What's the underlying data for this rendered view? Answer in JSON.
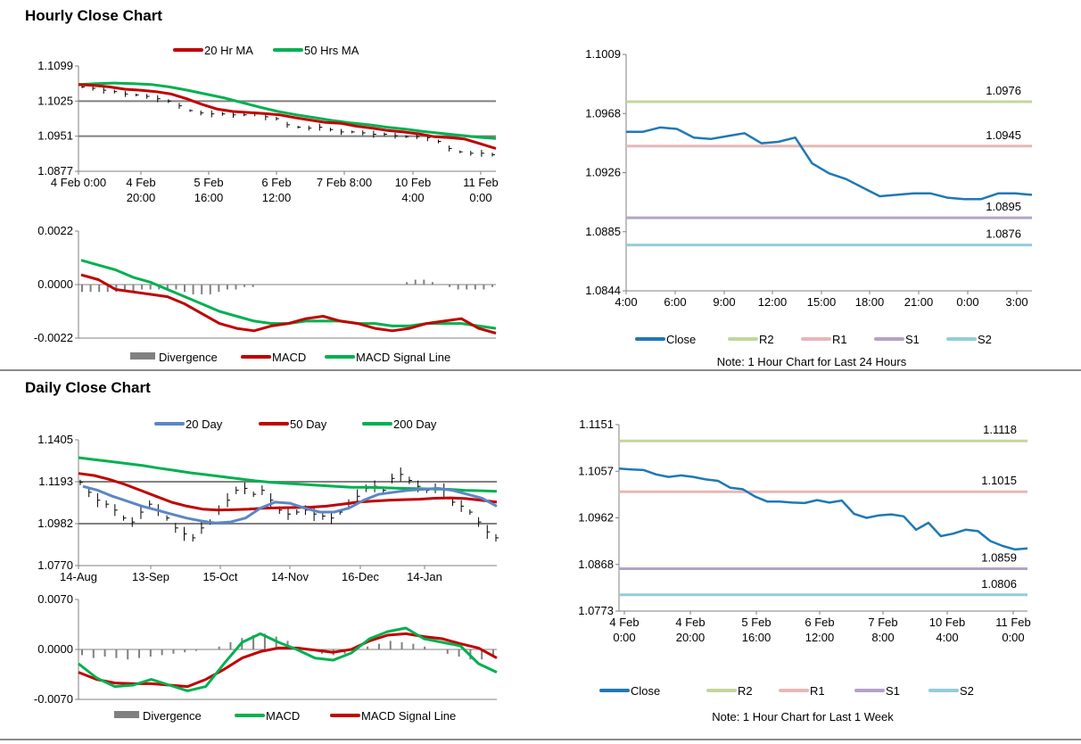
{
  "sections": {
    "hourly_title": "Hourly Close Chart",
    "daily_title": "Daily Close Chart"
  },
  "colors": {
    "ma20_hourly": "#c00000",
    "ma50_hourly": "#00b050",
    "day20": "#5b87c5",
    "day50": "#c00000",
    "day200": "#00b050",
    "macd_red": "#c00000",
    "macd_green": "#00b050",
    "divergence": "#808080",
    "close": "#1f78b4",
    "r2": "#c3d69b",
    "r1": "#e6b8b7",
    "s1": "#b3a2c7",
    "s2": "#92cddc",
    "grid": "#808080",
    "price_bar": "#000000"
  },
  "notes": {
    "hourly": "Note: 1 Hour Chart for Last 24 Hours",
    "daily": "Note: 1 Hour Chart for Last 1 Week"
  },
  "chart_data": [
    {
      "id": "hourly_price",
      "type": "line",
      "legend": [
        "20 Hr MA",
        "50 Hrs MA"
      ],
      "yticks": [
        "1.1099",
        "1.1025",
        "1.0951",
        "1.0877"
      ],
      "ylim": [
        1.0877,
        1.1099
      ],
      "xticks": [
        [
          "4 Feb 0:00"
        ],
        [
          "4 Feb",
          "20:00"
        ],
        [
          "5 Feb",
          "16:00"
        ],
        [
          "6 Feb",
          "12:00"
        ],
        [
          "7 Feb 8:00"
        ],
        [
          "10 Feb",
          "4:00"
        ],
        [
          "11 Feb",
          "0:00"
        ]
      ],
      "price_y": [
        1.1055,
        1.1052,
        1.1048,
        1.1045,
        1.104,
        1.1038,
        1.1035,
        1.103,
        1.1025,
        1.1015,
        1.1005,
        1.1,
        1.0998,
        1.0998,
        1.0996,
        1.0996,
        1.0998,
        1.0992,
        1.0988,
        1.0975,
        1.097,
        1.0968,
        1.097,
        1.0965,
        1.096,
        1.096,
        1.0958,
        1.0955,
        1.0955,
        1.0952,
        1.095,
        1.095,
        1.0948,
        1.094,
        1.0925,
        1.0918,
        1.0915,
        1.0915,
        1.0912
      ],
      "series": [
        {
          "name": "20 Hr MA",
          "values": [
            1.106,
            1.1058,
            1.1055,
            1.105,
            1.1048,
            1.1045,
            1.104,
            1.103,
            1.1018,
            1.1008,
            1.1003,
            1.1001,
            1.0999,
            1.0996,
            1.099,
            1.0985,
            1.098,
            1.0978,
            1.0972,
            1.0968,
            1.0963,
            1.096,
            1.0956,
            1.095,
            1.0948,
            1.0945,
            1.0935,
            1.0925
          ]
        },
        {
          "name": "50 Hrs MA",
          "values": [
            1.106,
            1.1062,
            1.1063,
            1.1062,
            1.106,
            1.1055,
            1.1048,
            1.104,
            1.1032,
            1.1022,
            1.1012,
            1.1003,
            1.0996,
            1.099,
            1.0984,
            1.0979,
            1.0975,
            1.097,
            1.0966,
            1.0961,
            1.0957,
            1.0953,
            1.0949,
            1.0946
          ]
        }
      ]
    },
    {
      "id": "hourly_macd",
      "type": "line",
      "legend": [
        "Divergence",
        "MACD",
        "MACD Signal Line"
      ],
      "yticks": [
        "0.0022",
        "0.0000",
        "-0.0022"
      ],
      "ylim": [
        -0.0022,
        0.0022
      ],
      "series": [
        {
          "name": "Divergence",
          "values": [
            -0.0003,
            -0.0003,
            -0.0003,
            -0.0003,
            -0.0003,
            -0.0003,
            -0.0003,
            -0.0002,
            -0.0002,
            -0.0002,
            -0.0002,
            -0.0002,
            -0.0003,
            -0.0004,
            -0.0004,
            -0.0004,
            -0.0003,
            -0.0002,
            -0.0002,
            -0.0001,
            -0.0001,
            0.0,
            0.0,
            0.0,
            0.0,
            0.0,
            0.0,
            0.0,
            0.0,
            0.0,
            0.0,
            0.0,
            0.0,
            0.0,
            0.0,
            0.0,
            0.0,
            0.0,
            0.0001,
            0.0002,
            0.0002,
            0.0001,
            0.0,
            -0.0001,
            -0.0002,
            -0.0002,
            -0.0002,
            -0.0002,
            -0.0001
          ]
        },
        {
          "name": "MACD",
          "values": [
            0.0004,
            0.0002,
            -0.0002,
            -0.0003,
            -0.0004,
            -0.0005,
            -0.0008,
            -0.0012,
            -0.0016,
            -0.0018,
            -0.0019,
            -0.0017,
            -0.0016,
            -0.0014,
            -0.0013,
            -0.0015,
            -0.0016,
            -0.0018,
            -0.0019,
            -0.0018,
            -0.0016,
            -0.0015,
            -0.0014,
            -0.0018,
            -0.002
          ]
        },
        {
          "name": "MACD Signal Line",
          "values": [
            0.001,
            0.0008,
            0.0006,
            0.0003,
            0.0001,
            -0.0002,
            -0.0005,
            -0.0008,
            -0.0011,
            -0.0013,
            -0.0015,
            -0.0016,
            -0.0016,
            -0.0015,
            -0.0015,
            -0.0015,
            -0.0016,
            -0.0016,
            -0.0017,
            -0.0017,
            -0.0016,
            -0.0016,
            -0.0016,
            -0.0017,
            -0.0018
          ]
        }
      ]
    },
    {
      "id": "hourly_levels",
      "type": "line",
      "legend": [
        "Close",
        "R2",
        "R1",
        "S1",
        "S2"
      ],
      "yticks": [
        "1.1009",
        "1.0968",
        "1.0926",
        "1.0885",
        "1.0844"
      ],
      "ylim": [
        1.0844,
        1.1009
      ],
      "xticks": [
        "4:00",
        "6:00",
        "9:00",
        "12:00",
        "15:00",
        "18:00",
        "21:00",
        "0:00",
        "3:00"
      ],
      "levels": [
        {
          "name": "R2",
          "value": 1.0976,
          "label": "1.0976"
        },
        {
          "name": "R1",
          "value": 1.0945,
          "label": "1.0945"
        },
        {
          "name": "S1",
          "value": 1.0895,
          "label": "1.0895"
        },
        {
          "name": "S2",
          "value": 1.0876,
          "label": "1.0876"
        }
      ],
      "series": [
        {
          "name": "Close",
          "values": [
            1.0955,
            1.0955,
            1.0958,
            1.0957,
            1.0951,
            1.095,
            1.0952,
            1.0954,
            1.0947,
            1.0948,
            1.0951,
            1.0933,
            1.0926,
            1.0922,
            1.0916,
            1.091,
            1.0911,
            1.0912,
            1.0912,
            1.0909,
            1.0908,
            1.0908,
            1.0912,
            1.0912,
            1.0911
          ]
        }
      ]
    },
    {
      "id": "daily_price",
      "type": "line",
      "legend": [
        "20 Day",
        "50 Day",
        "200 Day"
      ],
      "yticks": [
        "1.1405",
        "1.1193",
        "1.0982",
        "1.0770"
      ],
      "ylim": [
        1.077,
        1.1405
      ],
      "xticks": [
        "14-Aug",
        "13-Sep",
        "15-Oct",
        "14-Nov",
        "16-Dec",
        "14-Jan"
      ],
      "price_y": [
        1.119,
        1.114,
        1.11,
        1.108,
        1.105,
        1.101,
        1.099,
        1.104,
        1.108,
        1.105,
        1.101,
        1.096,
        1.093,
        1.091,
        1.096,
        1.099,
        1.105,
        1.11,
        1.115,
        1.116,
        1.113,
        1.115,
        1.11,
        1.105,
        1.103,
        1.104,
        1.105,
        1.103,
        1.102,
        1.101,
        1.104,
        1.108,
        1.112,
        1.116,
        1.117,
        1.115,
        1.121,
        1.123,
        1.12,
        1.117,
        1.115,
        1.116,
        1.115,
        1.109,
        1.107,
        1.104,
        1.099,
        1.094,
        1.091
      ],
      "series": [
        {
          "name": "20 Day",
          "values": [
            1.117,
            1.115,
            1.112,
            1.1095,
            1.107,
            1.105,
            1.103,
            1.101,
            1.0995,
            1.0985,
            1.099,
            1.101,
            1.106,
            1.109,
            1.1085,
            1.106,
            1.104,
            1.104,
            1.106,
            1.11,
            1.113,
            1.114,
            1.115,
            1.1155,
            1.116,
            1.115,
            1.113,
            1.111,
            1.107
          ]
        },
        {
          "name": "50 Day",
          "values": [
            1.1235,
            1.1225,
            1.1205,
            1.118,
            1.115,
            1.112,
            1.109,
            1.107,
            1.1055,
            1.105,
            1.1052,
            1.1055,
            1.106,
            1.1062,
            1.1063,
            1.1065,
            1.107,
            1.108,
            1.109,
            1.1095,
            1.11,
            1.1103,
            1.1105,
            1.111,
            1.1112,
            1.1108,
            1.11,
            1.109
          ]
        },
        {
          "name": "200 Day",
          "values": [
            1.1315,
            1.1305,
            1.1295,
            1.1285,
            1.1275,
            1.1262,
            1.125,
            1.1238,
            1.1228,
            1.1218,
            1.1208,
            1.1198,
            1.119,
            1.1185,
            1.118,
            1.1175,
            1.117,
            1.1165,
            1.1165,
            1.1163,
            1.116,
            1.1158,
            1.1157,
            1.1155,
            1.115,
            1.1148,
            1.1145
          ]
        }
      ]
    },
    {
      "id": "daily_macd",
      "type": "line",
      "legend": [
        "Divergence",
        "MACD",
        "MACD Signal Line"
      ],
      "yticks": [
        "0.0070",
        "0.0000",
        "-0.0070"
      ],
      "ylim": [
        -0.007,
        0.007
      ],
      "series": [
        {
          "name": "Divergence",
          "values": [
            -0.0008,
            -0.0012,
            -0.001,
            -0.0012,
            -0.0014,
            -0.0012,
            -0.001,
            -0.0008,
            -0.0006,
            -0.0004,
            -0.0002,
            0.0,
            0.0004,
            0.001,
            0.0016,
            0.002,
            0.0022,
            0.0018,
            0.0012,
            0.0004,
            -0.0002,
            -0.0006,
            -0.0008,
            -0.0006,
            -0.0002,
            0.0004,
            0.0008,
            0.0012,
            0.001,
            0.0008,
            0.0004,
            0.0,
            -0.0006,
            -0.001,
            -0.0014,
            -0.0014,
            -0.001
          ]
        },
        {
          "name": "MACD",
          "values": [
            -0.002,
            -0.004,
            -0.0052,
            -0.005,
            -0.0042,
            -0.005,
            -0.0058,
            -0.0052,
            -0.002,
            0.001,
            0.0022,
            0.001,
            0.0,
            -0.0012,
            -0.0015,
            -0.0005,
            0.0015,
            0.0025,
            0.003,
            0.0015,
            0.001,
            0.0005,
            -0.002,
            -0.0032
          ]
        },
        {
          "name": "MACD Signal Line",
          "values": [
            -0.0032,
            -0.0042,
            -0.0047,
            -0.0048,
            -0.0048,
            -0.005,
            -0.0052,
            -0.0042,
            -0.0028,
            -0.0012,
            -0.0003,
            0.0002,
            0.0002,
            -0.0001,
            -0.0004,
            0.0,
            0.0012,
            0.002,
            0.0022,
            0.0018,
            0.0015,
            0.0008,
            0.0002,
            -0.0012
          ]
        }
      ]
    },
    {
      "id": "daily_levels",
      "type": "line",
      "legend": [
        "Close",
        "R2",
        "R1",
        "S1",
        "S2"
      ],
      "yticks": [
        "1.1151",
        "1.1057",
        "1.0962",
        "1.0868",
        "1.0773"
      ],
      "ylim": [
        1.0773,
        1.1151
      ],
      "xticks": [
        [
          "4 Feb",
          "0:00"
        ],
        [
          "4 Feb",
          "20:00"
        ],
        [
          "5 Feb",
          "16:00"
        ],
        [
          "6 Feb",
          "12:00"
        ],
        [
          "7 Feb",
          "8:00"
        ],
        [
          "10 Feb",
          "4:00"
        ],
        [
          "11 Feb",
          "0:00"
        ]
      ],
      "levels": [
        {
          "name": "R2",
          "value": 1.1118,
          "label": "1.1118"
        },
        {
          "name": "R1",
          "value": 1.1015,
          "label": "1.1015"
        },
        {
          "name": "S1",
          "value": 1.0859,
          "label": "1.0859"
        },
        {
          "name": "S2",
          "value": 1.0806,
          "label": "1.0806"
        }
      ],
      "series": [
        {
          "name": "Close",
          "values": [
            1.1062,
            1.106,
            1.1059,
            1.105,
            1.1045,
            1.1048,
            1.1045,
            1.104,
            1.1037,
            1.1023,
            1.102,
            1.1005,
            1.0995,
            1.0995,
            1.0993,
            1.0992,
            1.0998,
            1.0993,
            1.0997,
            1.097,
            1.0962,
            1.0967,
            1.0969,
            1.0965,
            1.0938,
            1.0952,
            1.0925,
            1.093,
            1.0938,
            1.0935,
            1.0915,
            1.0905,
            1.0898,
            1.09
          ]
        }
      ]
    }
  ]
}
